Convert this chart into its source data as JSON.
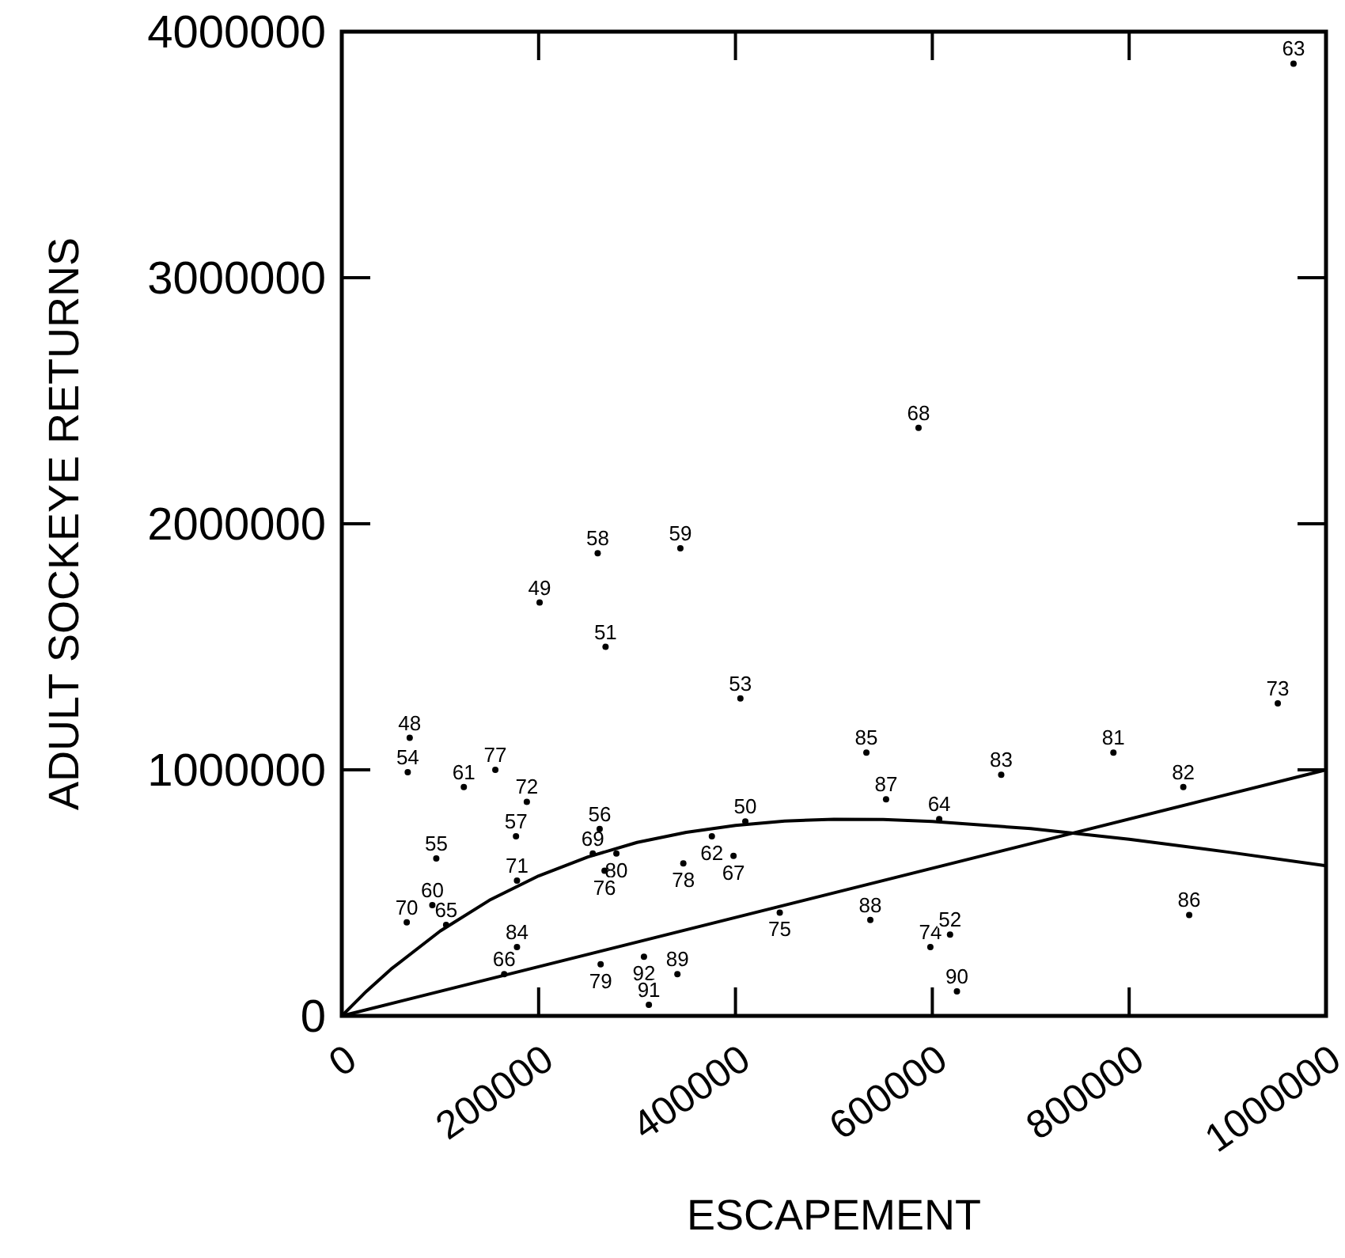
{
  "chart_data": {
    "type": "scatter",
    "xlabel": "ESCAPEMENT",
    "ylabel": "ADULT SOCKEYE RETURNS",
    "xlim": [
      0,
      1000000
    ],
    "ylim": [
      0,
      4000000
    ],
    "xticks": [
      0,
      200000,
      400000,
      600000,
      800000,
      1000000
    ],
    "yticks": [
      0,
      1000000,
      2000000,
      3000000,
      4000000
    ],
    "grid": false,
    "series": [
      {
        "type": "scatter",
        "color": "#000000",
        "marker": "circle",
        "x": [
          967000,
          586000,
          260000,
          344000,
          201000,
          268000,
          405000,
          951000,
          69000,
          67000,
          533000,
          784000,
          124000,
          156000,
          670000,
          855000,
          188000,
          553000,
          177000,
          262000,
          410000,
          376000,
          607000,
          255000,
          279000,
          96000,
          347000,
          398000,
          267000,
          178000,
          92000,
          66000,
          106000,
          445000,
          537000,
          861000,
          598000,
          618000,
          178000,
          263000,
          307000,
          165000,
          341000,
          312000,
          625000
        ],
        "values": [
          3870000,
          2390000,
          1880000,
          1900000,
          1680000,
          1500000,
          1290000,
          1270000,
          1130000,
          990000,
          1070000,
          1070000,
          930000,
          1000000,
          980000,
          930000,
          870000,
          880000,
          730000,
          760000,
          790000,
          730000,
          800000,
          660000,
          660000,
          640000,
          620000,
          650000,
          590000,
          550000,
          450000,
          380000,
          370000,
          420000,
          390000,
          410000,
          280000,
          330000,
          280000,
          210000,
          240000,
          170000,
          170000,
          45000,
          100000
        ]
      },
      {
        "type": "line",
        "color": "#000000",
        "line_style": "solid",
        "marker": "none",
        "x": [
          0,
          25000,
          50000,
          100000,
          150000,
          200000,
          250000,
          300000,
          350000,
          400000,
          450000,
          500000,
          550000,
          600000,
          700000,
          800000,
          900000,
          1000000
        ],
        "values": [
          0,
          100000,
          190000,
          345000,
          470000,
          569000,
          646000,
          705000,
          746000,
          774000,
          792000,
          799000,
          798000,
          790000,
          761000,
          718000,
          666000,
          610000
        ]
      },
      {
        "type": "line",
        "color": "#000000",
        "line_style": "solid",
        "marker": "none",
        "x": [
          0,
          1000000
        ],
        "values": [
          0,
          1000000
        ]
      }
    ],
    "annotations": [
      {
        "text": "63",
        "x": 967000,
        "y": 3870000
      },
      {
        "text": "68",
        "x": 586000,
        "y": 2390000
      },
      {
        "text": "58",
        "x": 260000,
        "y": 1880000
      },
      {
        "text": "59",
        "x": 344000,
        "y": 1900000
      },
      {
        "text": "49",
        "x": 201000,
        "y": 1680000
      },
      {
        "text": "51",
        "x": 268000,
        "y": 1500000
      },
      {
        "text": "53",
        "x": 405000,
        "y": 1290000
      },
      {
        "text": "73",
        "x": 951000,
        "y": 1270000
      },
      {
        "text": "48",
        "x": 69000,
        "y": 1130000
      },
      {
        "text": "54",
        "x": 67000,
        "y": 990000
      },
      {
        "text": "85",
        "x": 533000,
        "y": 1070000
      },
      {
        "text": "81",
        "x": 784000,
        "y": 1070000
      },
      {
        "text": "61",
        "x": 124000,
        "y": 930000
      },
      {
        "text": "77",
        "x": 156000,
        "y": 1000000
      },
      {
        "text": "83",
        "x": 670000,
        "y": 980000
      },
      {
        "text": "82",
        "x": 855000,
        "y": 930000
      },
      {
        "text": "72",
        "x": 188000,
        "y": 870000
      },
      {
        "text": "87",
        "x": 553000,
        "y": 880000
      },
      {
        "text": "57",
        "x": 177000,
        "y": 730000
      },
      {
        "text": "56",
        "x": 262000,
        "y": 760000
      },
      {
        "text": "50",
        "x": 410000,
        "y": 790000
      },
      {
        "text": "62",
        "x": 376000,
        "y": 730000
      },
      {
        "text": "64",
        "x": 607000,
        "y": 800000
      },
      {
        "text": "69",
        "x": 255000,
        "y": 660000
      },
      {
        "text": "80",
        "x": 279000,
        "y": 660000
      },
      {
        "text": "55",
        "x": 96000,
        "y": 640000
      },
      {
        "text": "78",
        "x": 347000,
        "y": 620000
      },
      {
        "text": "67",
        "x": 398000,
        "y": 650000
      },
      {
        "text": "76",
        "x": 267000,
        "y": 590000
      },
      {
        "text": "71",
        "x": 178000,
        "y": 550000
      },
      {
        "text": "60",
        "x": 92000,
        "y": 450000
      },
      {
        "text": "70",
        "x": 66000,
        "y": 380000
      },
      {
        "text": "65",
        "x": 106000,
        "y": 370000
      },
      {
        "text": "75",
        "x": 445000,
        "y": 420000
      },
      {
        "text": "88",
        "x": 537000,
        "y": 390000
      },
      {
        "text": "86",
        "x": 861000,
        "y": 410000
      },
      {
        "text": "74",
        "x": 598000,
        "y": 280000
      },
      {
        "text": "52",
        "x": 618000,
        "y": 330000
      },
      {
        "text": "84",
        "x": 178000,
        "y": 280000
      },
      {
        "text": "79",
        "x": 263000,
        "y": 210000
      },
      {
        "text": "92",
        "x": 307000,
        "y": 240000
      },
      {
        "text": "66",
        "x": 165000,
        "y": 170000
      },
      {
        "text": "89",
        "x": 341000,
        "y": 170000
      },
      {
        "text": "91",
        "x": 312000,
        "y": 45000
      },
      {
        "text": "90",
        "x": 625000,
        "y": 100000
      }
    ]
  }
}
